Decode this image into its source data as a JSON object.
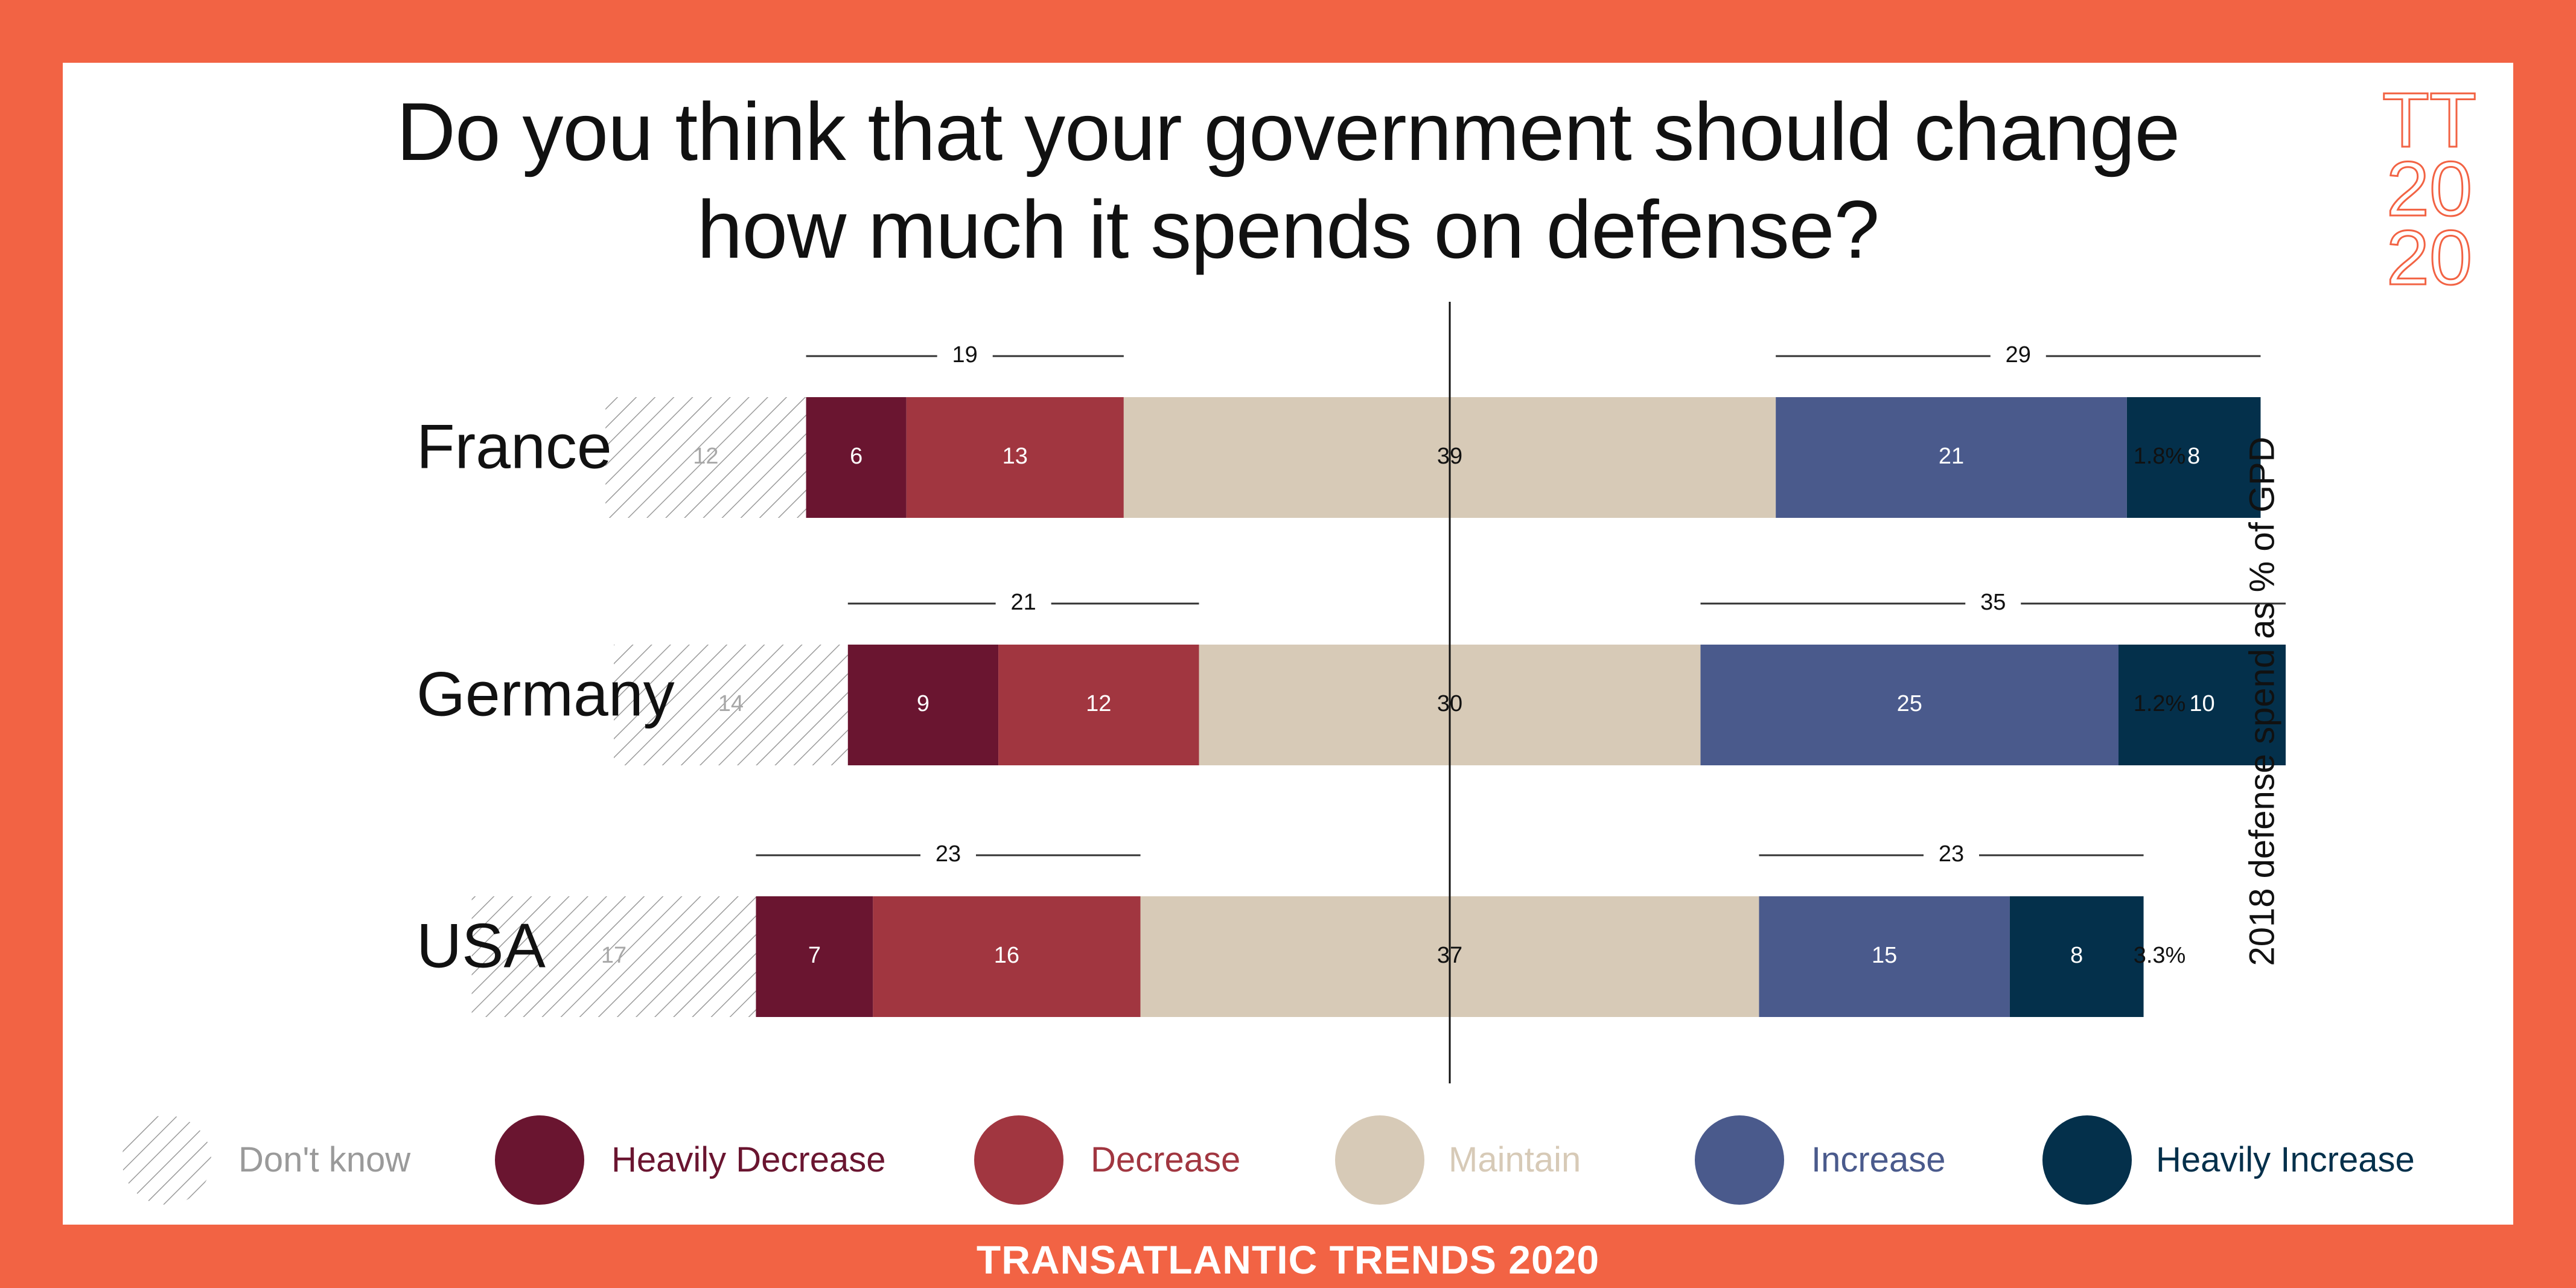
{
  "title_lines": [
    "Do you think that your government should change",
    "how much it spends on defense?"
  ],
  "logo": [
    "TT",
    "20",
    "20"
  ],
  "footer": "TRANSATLANTIC TRENDS 2020",
  "right_axis_label": "2018 defense spend as % of GPD",
  "colors": {
    "background": "#F26344",
    "dont_know_hatch": "#9a9a9a",
    "heavily_decrease": "#6A1530",
    "decrease": "#A13640",
    "maintain": "#D7CAB7",
    "increase": "#4A5A8C",
    "heavily_increase": "#04304B"
  },
  "legend": [
    {
      "key": "dont_know",
      "label": "Don't know",
      "label_color": "#9a9a9a"
    },
    {
      "key": "heavily_decrease",
      "label": "Heavily Decrease",
      "label_color": "#6A1530"
    },
    {
      "key": "decrease",
      "label": "Decrease",
      "label_color": "#A13640"
    },
    {
      "key": "maintain",
      "label": "Maintain",
      "label_color": "#D7CAB7"
    },
    {
      "key": "increase",
      "label": "Increase",
      "label_color": "#4A5A8C"
    },
    {
      "key": "heavily_increase",
      "label": "Heavily Increase",
      "label_color": "#04304B"
    }
  ],
  "chart_data": {
    "type": "bar",
    "orientation": "horizontal-diverging-stacked",
    "categories": [
      "France",
      "Germany",
      "USA"
    ],
    "series": [
      {
        "name": "Don't know",
        "values": [
          12,
          14,
          17
        ]
      },
      {
        "name": "Heavily Decrease",
        "values": [
          6,
          9,
          7
        ]
      },
      {
        "name": "Decrease",
        "values": [
          13,
          12,
          16
        ]
      },
      {
        "name": "Maintain",
        "values": [
          39,
          30,
          37
        ]
      },
      {
        "name": "Increase",
        "values": [
          21,
          25,
          15
        ]
      },
      {
        "name": "Heavily Increase",
        "values": [
          8,
          10,
          8
        ]
      }
    ],
    "decrease_totals": [
      19,
      21,
      23
    ],
    "increase_totals": [
      29,
      35,
      23
    ],
    "defense_spend_labels": [
      "1.8%",
      "1.2%",
      "3.3%"
    ],
    "legend_position": "bottom"
  }
}
